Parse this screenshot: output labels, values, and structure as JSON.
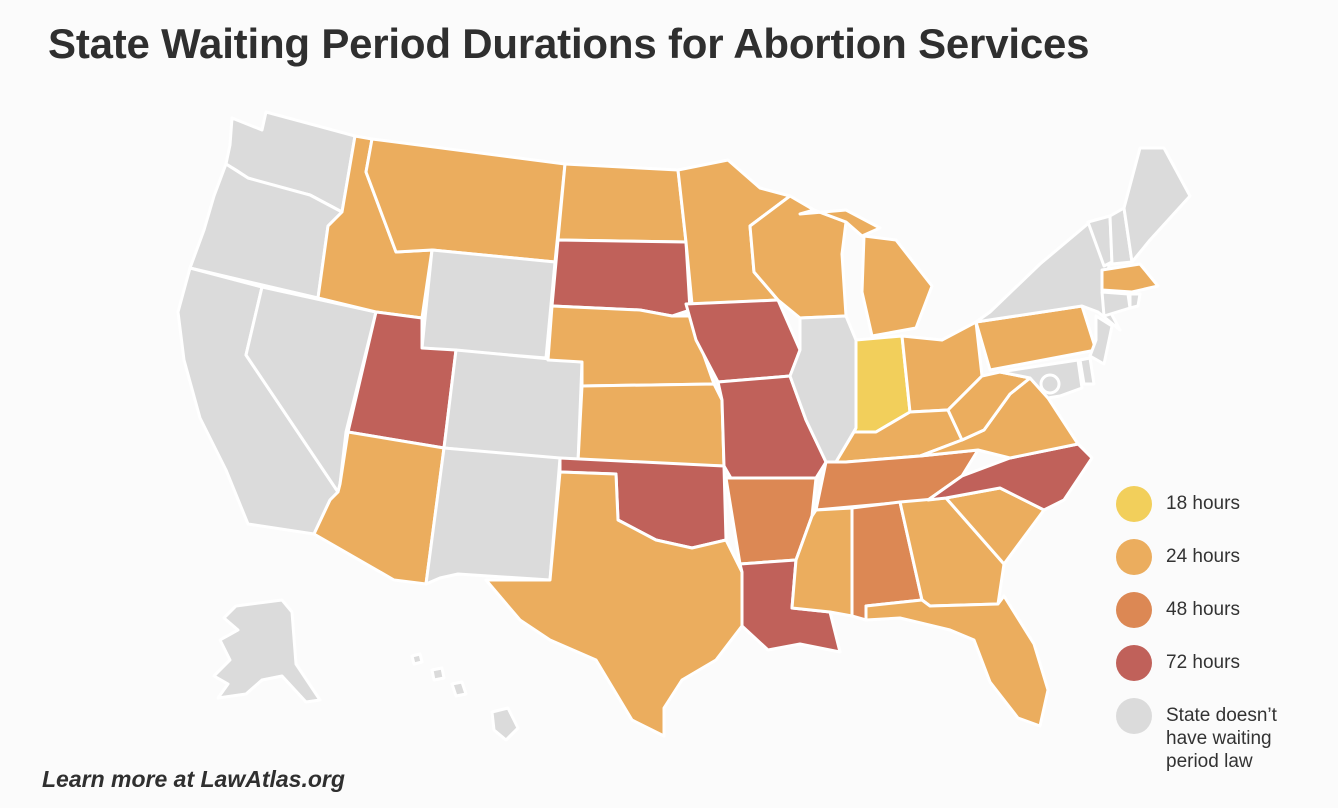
{
  "title": "State Waiting Period Durations for Abortion Services",
  "footer": "Learn more at LawAtlas.org",
  "colors": {
    "h18": "#f2cf5b",
    "h24": "#ebad5e",
    "h48": "#dc8854",
    "h72": "#c0615a",
    "none": "#dbdbdb",
    "border": "#ffffff",
    "background": "#fbfbfb"
  },
  "legend": [
    {
      "key": "h18",
      "label": "18 hours"
    },
    {
      "key": "h24",
      "label": "24 hours"
    },
    {
      "key": "h48",
      "label": "48 hours"
    },
    {
      "key": "h72",
      "label": "72 hours"
    },
    {
      "key": "none",
      "label": "State doesn’t have waiting period law"
    }
  ],
  "states": {
    "WA": "none",
    "OR": "none",
    "CA": "none",
    "NV": "none",
    "ID": "h24",
    "MT": "h24",
    "WY": "none",
    "UT": "h72",
    "AZ": "h24",
    "CO": "none",
    "NM": "none",
    "ND": "h24",
    "SD": "h72",
    "NE": "h24",
    "KS": "h24",
    "OK": "h72",
    "TX": "h24",
    "MN": "h24",
    "IA": "h72",
    "MO": "h72",
    "AR": "h48",
    "LA": "h72",
    "WI": "h24",
    "IL": "none",
    "MI": "h24",
    "IN": "h18",
    "OH": "h24",
    "KY": "h24",
    "TN": "h48",
    "MS": "h24",
    "AL": "h48",
    "GA": "h24",
    "FL": "h24",
    "SC": "h24",
    "NC": "h72",
    "VA": "h24",
    "WV": "h24",
    "PA": "h24",
    "NY": "none",
    "VT": "none",
    "NH": "none",
    "ME": "none",
    "MA": "h24",
    "CT": "none",
    "RI": "none",
    "NJ": "none",
    "DE": "none",
    "MD": "none",
    "DC": "none",
    "AK": "none",
    "HI": "none"
  }
}
